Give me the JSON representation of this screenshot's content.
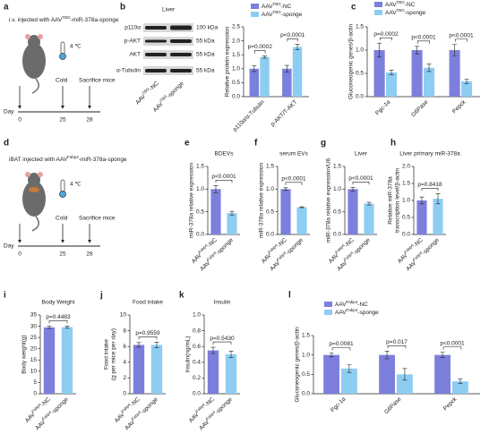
{
  "schematics": [
    {
      "panel": "a",
      "title": [
        "i.v. injected with AAV",
        "TBG",
        "-miR-378a-sponge"
      ],
      "temperature": "4 ℃",
      "cold": "Cold",
      "end": "Sacrifice mice",
      "day": "Day",
      "days": [
        "0",
        "25",
        "28"
      ]
    },
    {
      "panel": "d",
      "title": [
        "iBAT injected with AAV",
        "Fabp4",
        "-miR-378a-sponge"
      ],
      "temperature": "4 ℃",
      "cold": "Cold",
      "end": "Sacrifice mice",
      "day": "Day",
      "days": [
        "0",
        "25",
        "28"
      ]
    }
  ],
  "blot": {
    "panel": "b",
    "title": "Liver",
    "proteins": [
      "p110α",
      "p-AKT",
      "AKT",
      "α-Tubulin"
    ],
    "sizes": [
      "100 kDa",
      "55 kDa",
      "55 kDa",
      "55 kDa"
    ],
    "lanes": [
      [
        "AAV",
        "TBG",
        "-NC"
      ],
      [
        "AAV",
        "TBG",
        "-sponge"
      ]
    ]
  },
  "chart_data": [
    {
      "type": "grouped_bar",
      "ylabel": [
        "Relative protein expression"
      ],
      "categories": [
        "p110α/α-Tubulin",
        "p-AKT/T-AKT"
      ],
      "series": [
        {
          "name": [
            "AAV",
            "TBG",
            "-NC"
          ],
          "color": "#7d7fdc",
          "values": [
            1.0,
            1.0
          ],
          "errors": [
            0.1,
            0.12
          ]
        },
        {
          "name": [
            "AAV",
            "TBG",
            "-sponge"
          ],
          "color": "#8ecdf2",
          "values": [
            1.42,
            1.78
          ],
          "errors": [
            0.04,
            0.1
          ]
        }
      ],
      "ylim": [
        0,
        2.5
      ],
      "yticks": [
        {
          "value": 0,
          "label": "0.0"
        },
        0.5,
        {
          "value": 1,
          "label": "1.0"
        },
        1.5,
        {
          "value": 2,
          "label": "2.0"
        },
        2.5
      ],
      "annotations": [
        "p=0.0002",
        "p<0.0001"
      ]
    },
    {
      "type": "grouped_bar",
      "panel": "c",
      "ylabel": [
        "Gluconeogenic genes/β-actin"
      ],
      "categories": [
        "Pgc-1α",
        "G6Pase",
        "Pepck"
      ],
      "series": [
        {
          "name": [
            "AAV",
            "TBG",
            "-NC"
          ],
          "color": "#7d7fdc",
          "values": [
            1.0,
            1.0,
            1.0
          ],
          "errors": [
            0.15,
            0.08,
            0.12
          ]
        },
        {
          "name": [
            "AAV",
            "TBG",
            "-sponge"
          ],
          "color": "#8ecdf2",
          "values": [
            0.52,
            0.62,
            0.33
          ],
          "errors": [
            0.05,
            0.08,
            0.05
          ]
        }
      ],
      "ylim": [
        0,
        1.5
      ],
      "yticks": [
        {
          "value": 0,
          "label": "0.0"
        },
        0.5,
        {
          "value": 1,
          "label": "1.0"
        },
        1.5
      ],
      "annotations": [
        "p=0.0002",
        "p<0.0001",
        "p<0.0001"
      ]
    },
    {
      "type": "bar",
      "panel": "e",
      "title": "BDEVs",
      "ylabel": [
        "miR-378a relative expression"
      ],
      "categories": [
        [
          "AAV",
          "Fabp4",
          "-NC"
        ],
        [
          "AAV",
          "Fabp4",
          "-sponge"
        ]
      ],
      "values": [
        1.0,
        0.47
      ],
      "errors": [
        0.08,
        0.04
      ],
      "colors": [
        "#7d7fdc",
        "#8ecdf2"
      ],
      "ylim": [
        0,
        1.5
      ],
      "yticks": [
        {
          "value": 0,
          "label": "0.0"
        },
        0.5,
        {
          "value": 1,
          "label": "1.0"
        },
        1.5
      ],
      "annotations": [
        "p<0.0001"
      ]
    },
    {
      "type": "bar",
      "panel": "f",
      "title": "serum EVs",
      "ylabel": [
        "miR-378a relative expression"
      ],
      "categories": [
        [
          "AAV",
          "Fabp4",
          "-NC"
        ],
        [
          "AAV",
          "Fabp4",
          "-sponge"
        ]
      ],
      "values": [
        1.0,
        0.6
      ],
      "errors": [
        0.03,
        0.01
      ],
      "colors": [
        "#7d7fdc",
        "#8ecdf2"
      ],
      "ylim": [
        0,
        1.5
      ],
      "yticks": [
        {
          "value": 0,
          "label": "0.0"
        },
        0.5,
        {
          "value": 1,
          "label": "1.0"
        },
        1.5
      ],
      "annotations": [
        "p<0.0001"
      ]
    },
    {
      "type": "bar",
      "panel": "g",
      "title": "Liver",
      "ylabel": [
        "miR-378a relative expression/U6"
      ],
      "categories": [
        [
          "AAV",
          "Fabp4",
          "-NC"
        ],
        [
          "AAV",
          "Fabp4",
          "-sponge"
        ]
      ],
      "values": [
        1.0,
        0.68
      ],
      "errors": [
        0.04,
        0.03
      ],
      "colors": [
        "#7d7fdc",
        "#8ecdf2"
      ],
      "ylim": [
        0,
        1.5
      ],
      "yticks": [
        {
          "value": 0,
          "label": "0.0"
        },
        0.5,
        {
          "value": 1,
          "label": "1.0"
        },
        1.5
      ],
      "annotations": [
        "p<0.0001"
      ]
    },
    {
      "type": "bar",
      "panel": "h",
      "title": "Liver primary miR-378a",
      "ylabel": [
        "Relative miR-378a",
        "transcription level/β-actin"
      ],
      "categories": [
        [
          "AAV",
          "Fabp4",
          "-NC"
        ],
        [
          "AAV",
          "Fabp4",
          "-sponge"
        ]
      ],
      "values": [
        1.0,
        1.05
      ],
      "errors": [
        0.1,
        0.15
      ],
      "colors": [
        "#7d7fdc",
        "#8ecdf2"
      ],
      "ylim": [
        0,
        2
      ],
      "yticks": [
        {
          "value": 0,
          "label": "0.0"
        },
        0.5,
        {
          "value": 1,
          "label": "1.0"
        },
        1.5,
        {
          "value": 2,
          "label": "2.0"
        }
      ],
      "annotations": [
        "p=0.8418"
      ]
    },
    {
      "type": "bar",
      "panel": "i",
      "title": "Body Weight",
      "ylabel": [
        "Body weight(g)"
      ],
      "categories": [
        [
          "AAV",
          "Fabp4",
          "-NC"
        ],
        [
          "AAV",
          "Fabp4",
          "-sponge"
        ]
      ],
      "values": [
        29.5,
        29.6
      ],
      "errors": [
        0.5,
        0.5
      ],
      "colors": [
        "#7d7fdc",
        "#8ecdf2"
      ],
      "ylim": [
        0,
        35
      ],
      "yticks": [
        0,
        5,
        10,
        15,
        20,
        25,
        30,
        35
      ],
      "annotations": [
        "p=0.4483"
      ]
    },
    {
      "type": "bar",
      "panel": "j",
      "title": "Food intake",
      "ylabel": [
        "Food intake",
        "(g per mice per day)"
      ],
      "categories": [
        [
          "AAV",
          "Fabp4",
          "-NC"
        ],
        [
          "AAV",
          "Fabp4",
          "-sponge"
        ]
      ],
      "values": [
        6.2,
        6.2
      ],
      "errors": [
        0.3,
        0.35
      ],
      "colors": [
        "#7d7fdc",
        "#8ecdf2"
      ],
      "ylim": [
        0,
        10
      ],
      "yticks": [
        0,
        2,
        4,
        6,
        8,
        10
      ],
      "annotations": [
        "p=0.9559"
      ]
    },
    {
      "type": "bar",
      "panel": "k",
      "title": "Insulin",
      "ylabel": [
        "Insulin(ng/mL)"
      ],
      "categories": [
        [
          "AAV",
          "Fabp4",
          "-NC"
        ],
        [
          "AAV",
          "Fabp4",
          "-sponge"
        ]
      ],
      "values": [
        0.55,
        0.5
      ],
      "errors": [
        0.04,
        0.04
      ],
      "colors": [
        "#7d7fdc",
        "#8ecdf2"
      ],
      "ylim": [
        0,
        1
      ],
      "yticks": [
        {
          "value": 0,
          "label": "0.0"
        },
        0.2,
        0.4,
        0.6,
        0.8,
        {
          "value": 1,
          "label": "1.0"
        }
      ],
      "annotations": [
        "p=0.5430"
      ]
    },
    {
      "type": "grouped_bar",
      "panel": "l",
      "ylabel": [
        "Gluconeogenic genes/β-actin"
      ],
      "categories": [
        "Pgc-1α",
        "G6Pase",
        "Pepck"
      ],
      "series": [
        {
          "name": [
            "AAV",
            "Fabp4",
            "-NC"
          ],
          "color": "#7d7fdc",
          "values": [
            1.0,
            1.0,
            1.0
          ],
          "errors": [
            0.05,
            0.1,
            0.07
          ]
        },
        {
          "name": [
            "AAV",
            "Fabp4",
            "-sponge"
          ],
          "color": "#8ecdf2",
          "values": [
            0.65,
            0.5,
            0.32
          ],
          "errors": [
            0.1,
            0.15,
            0.06
          ]
        }
      ],
      "ylim": [
        0,
        1.5
      ],
      "yticks": [
        {
          "value": 0,
          "label": "0.0"
        },
        0.5,
        {
          "value": 1,
          "label": "1.0"
        },
        1.5
      ],
      "annotations": [
        "p=0.0081",
        "p=0.017",
        "p<0.0001"
      ]
    }
  ]
}
